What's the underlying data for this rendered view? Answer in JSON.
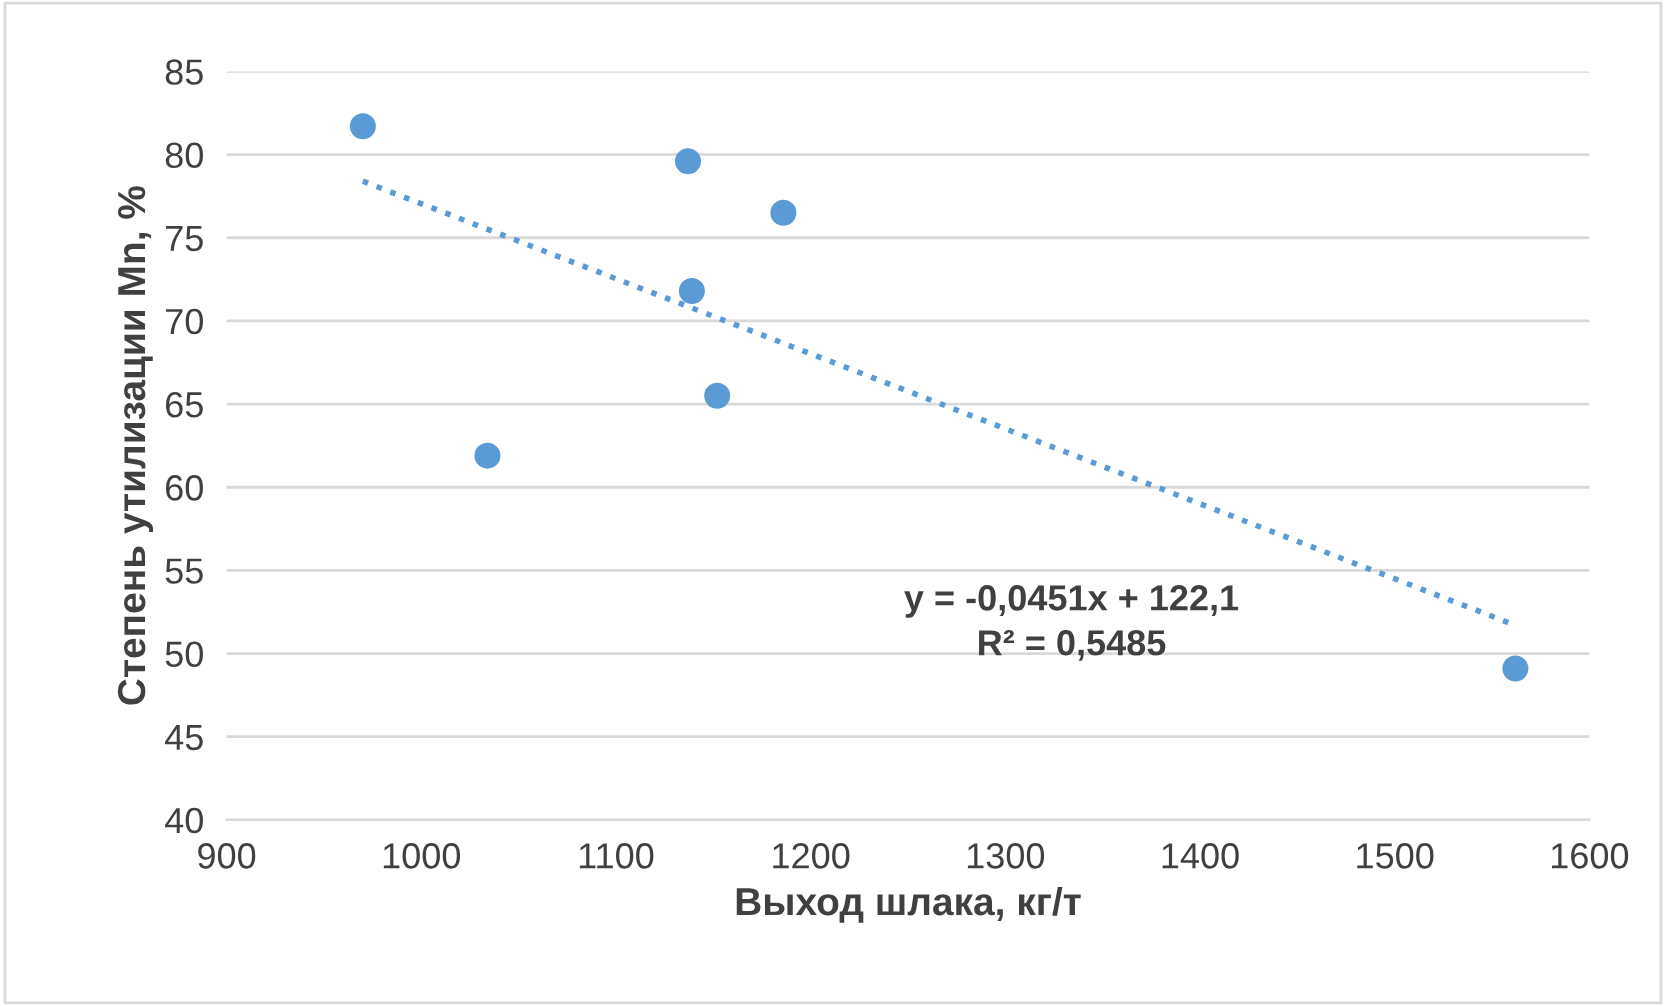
{
  "chart_data": {
    "type": "scatter",
    "xlabel": "Выход шлака, кг/т",
    "ylabel": "Степень утилизации Mn, %",
    "xlim": [
      900,
      1600
    ],
    "xticks": [
      900,
      1000,
      1100,
      1200,
      1300,
      1400,
      1500,
      1600
    ],
    "ylim": [
      40,
      85
    ],
    "yticks": [
      40,
      45,
      50,
      55,
      60,
      65,
      70,
      75,
      80,
      85
    ],
    "grid": "y",
    "marker": "circle",
    "series": [
      {
        "color": "#5b9bd5",
        "x": [
          970,
          1137,
          1186,
          1139,
          1152,
          1034,
          1562
        ],
        "values": [
          81.7,
          79.6,
          76.5,
          71.8,
          65.5,
          61.9,
          49.1
        ]
      },
      {
        "type": "line",
        "line_style": "dotted",
        "marker": "none",
        "color": "#5b9bd5",
        "x": [
          970,
          1562
        ],
        "values": [
          78.4,
          51.7
        ]
      }
    ],
    "annotations": [
      "y = -0,0451x + 122,1",
      "R² = 0,5485"
    ]
  }
}
